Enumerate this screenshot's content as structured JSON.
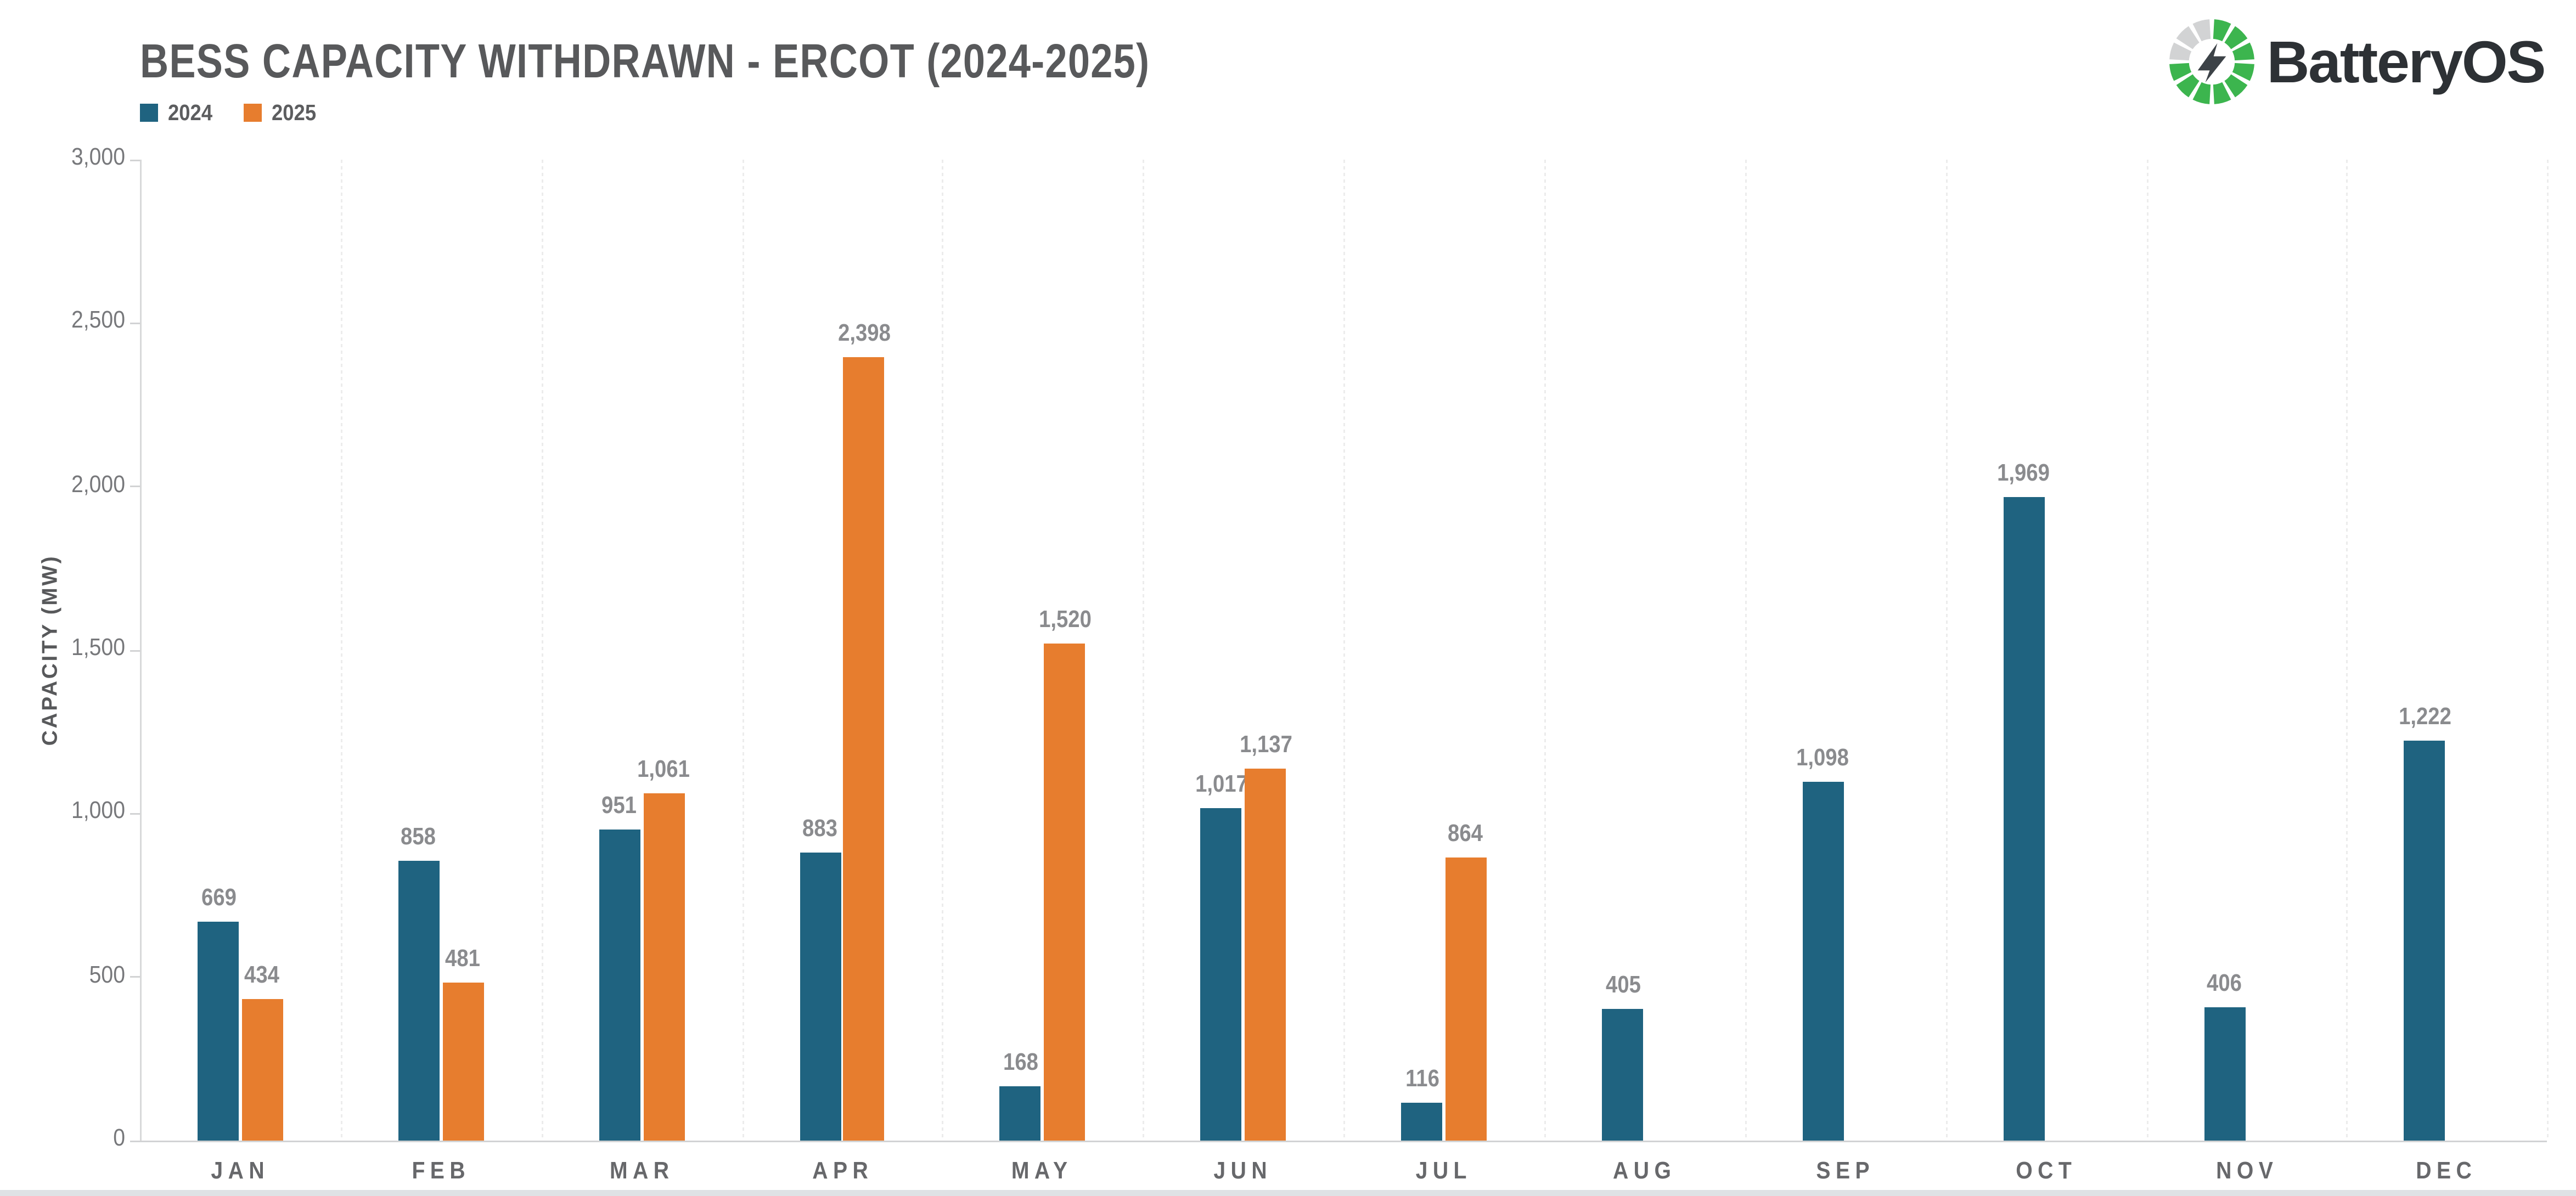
{
  "header": {
    "title": "BESS CAPACITY WITHDRAWN - ERCOT (2024-2025)",
    "legend": [
      {
        "label": "2024",
        "color": "#1f6380"
      },
      {
        "label": "2025",
        "color": "#e77d2e"
      }
    ]
  },
  "logo": {
    "text": "BatteryOS",
    "icon": {
      "name": "battery-ring-with-bolt",
      "green": "#3cb54e",
      "gray": "#d2d3d4",
      "bolt_color": "#3c4247",
      "segments_total": 12,
      "gray_segment_indices": [
        9,
        10,
        11
      ]
    }
  },
  "y_axis": {
    "label": "CAPACITY (MW)",
    "tick_labels": [
      "0",
      "500",
      "1,000",
      "1,500",
      "2,000",
      "2,500",
      "3,000"
    ]
  },
  "chart_data": {
    "type": "bar",
    "title": "BESS CAPACITY WITHDRAWN - ERCOT (2024-2025)",
    "categories": [
      "JAN",
      "FEB",
      "MAR",
      "APR",
      "MAY",
      "JUN",
      "JUL",
      "AUG",
      "SEP",
      "OCT",
      "NOV",
      "DEC"
    ],
    "series": [
      {
        "name": "2024",
        "color": "#1f6380",
        "values": [
          669,
          858,
          951,
          883,
          168,
          1017,
          116,
          405,
          1098,
          1969,
          406,
          1222
        ]
      },
      {
        "name": "2025",
        "color": "#e77d2e",
        "values": [
          434,
          481,
          1061,
          2398,
          1520,
          1137,
          864,
          null,
          null,
          null,
          null,
          null
        ]
      }
    ],
    "xlabel": "",
    "ylabel": "CAPACITY (MW)",
    "ylim": [
      0,
      3000
    ],
    "yticks": [
      0,
      500,
      1000,
      1500,
      2000,
      2500,
      3000
    ],
    "grid": "vertical-dotted-category-boundaries",
    "legend_position": "top-left",
    "value_labels": true
  }
}
